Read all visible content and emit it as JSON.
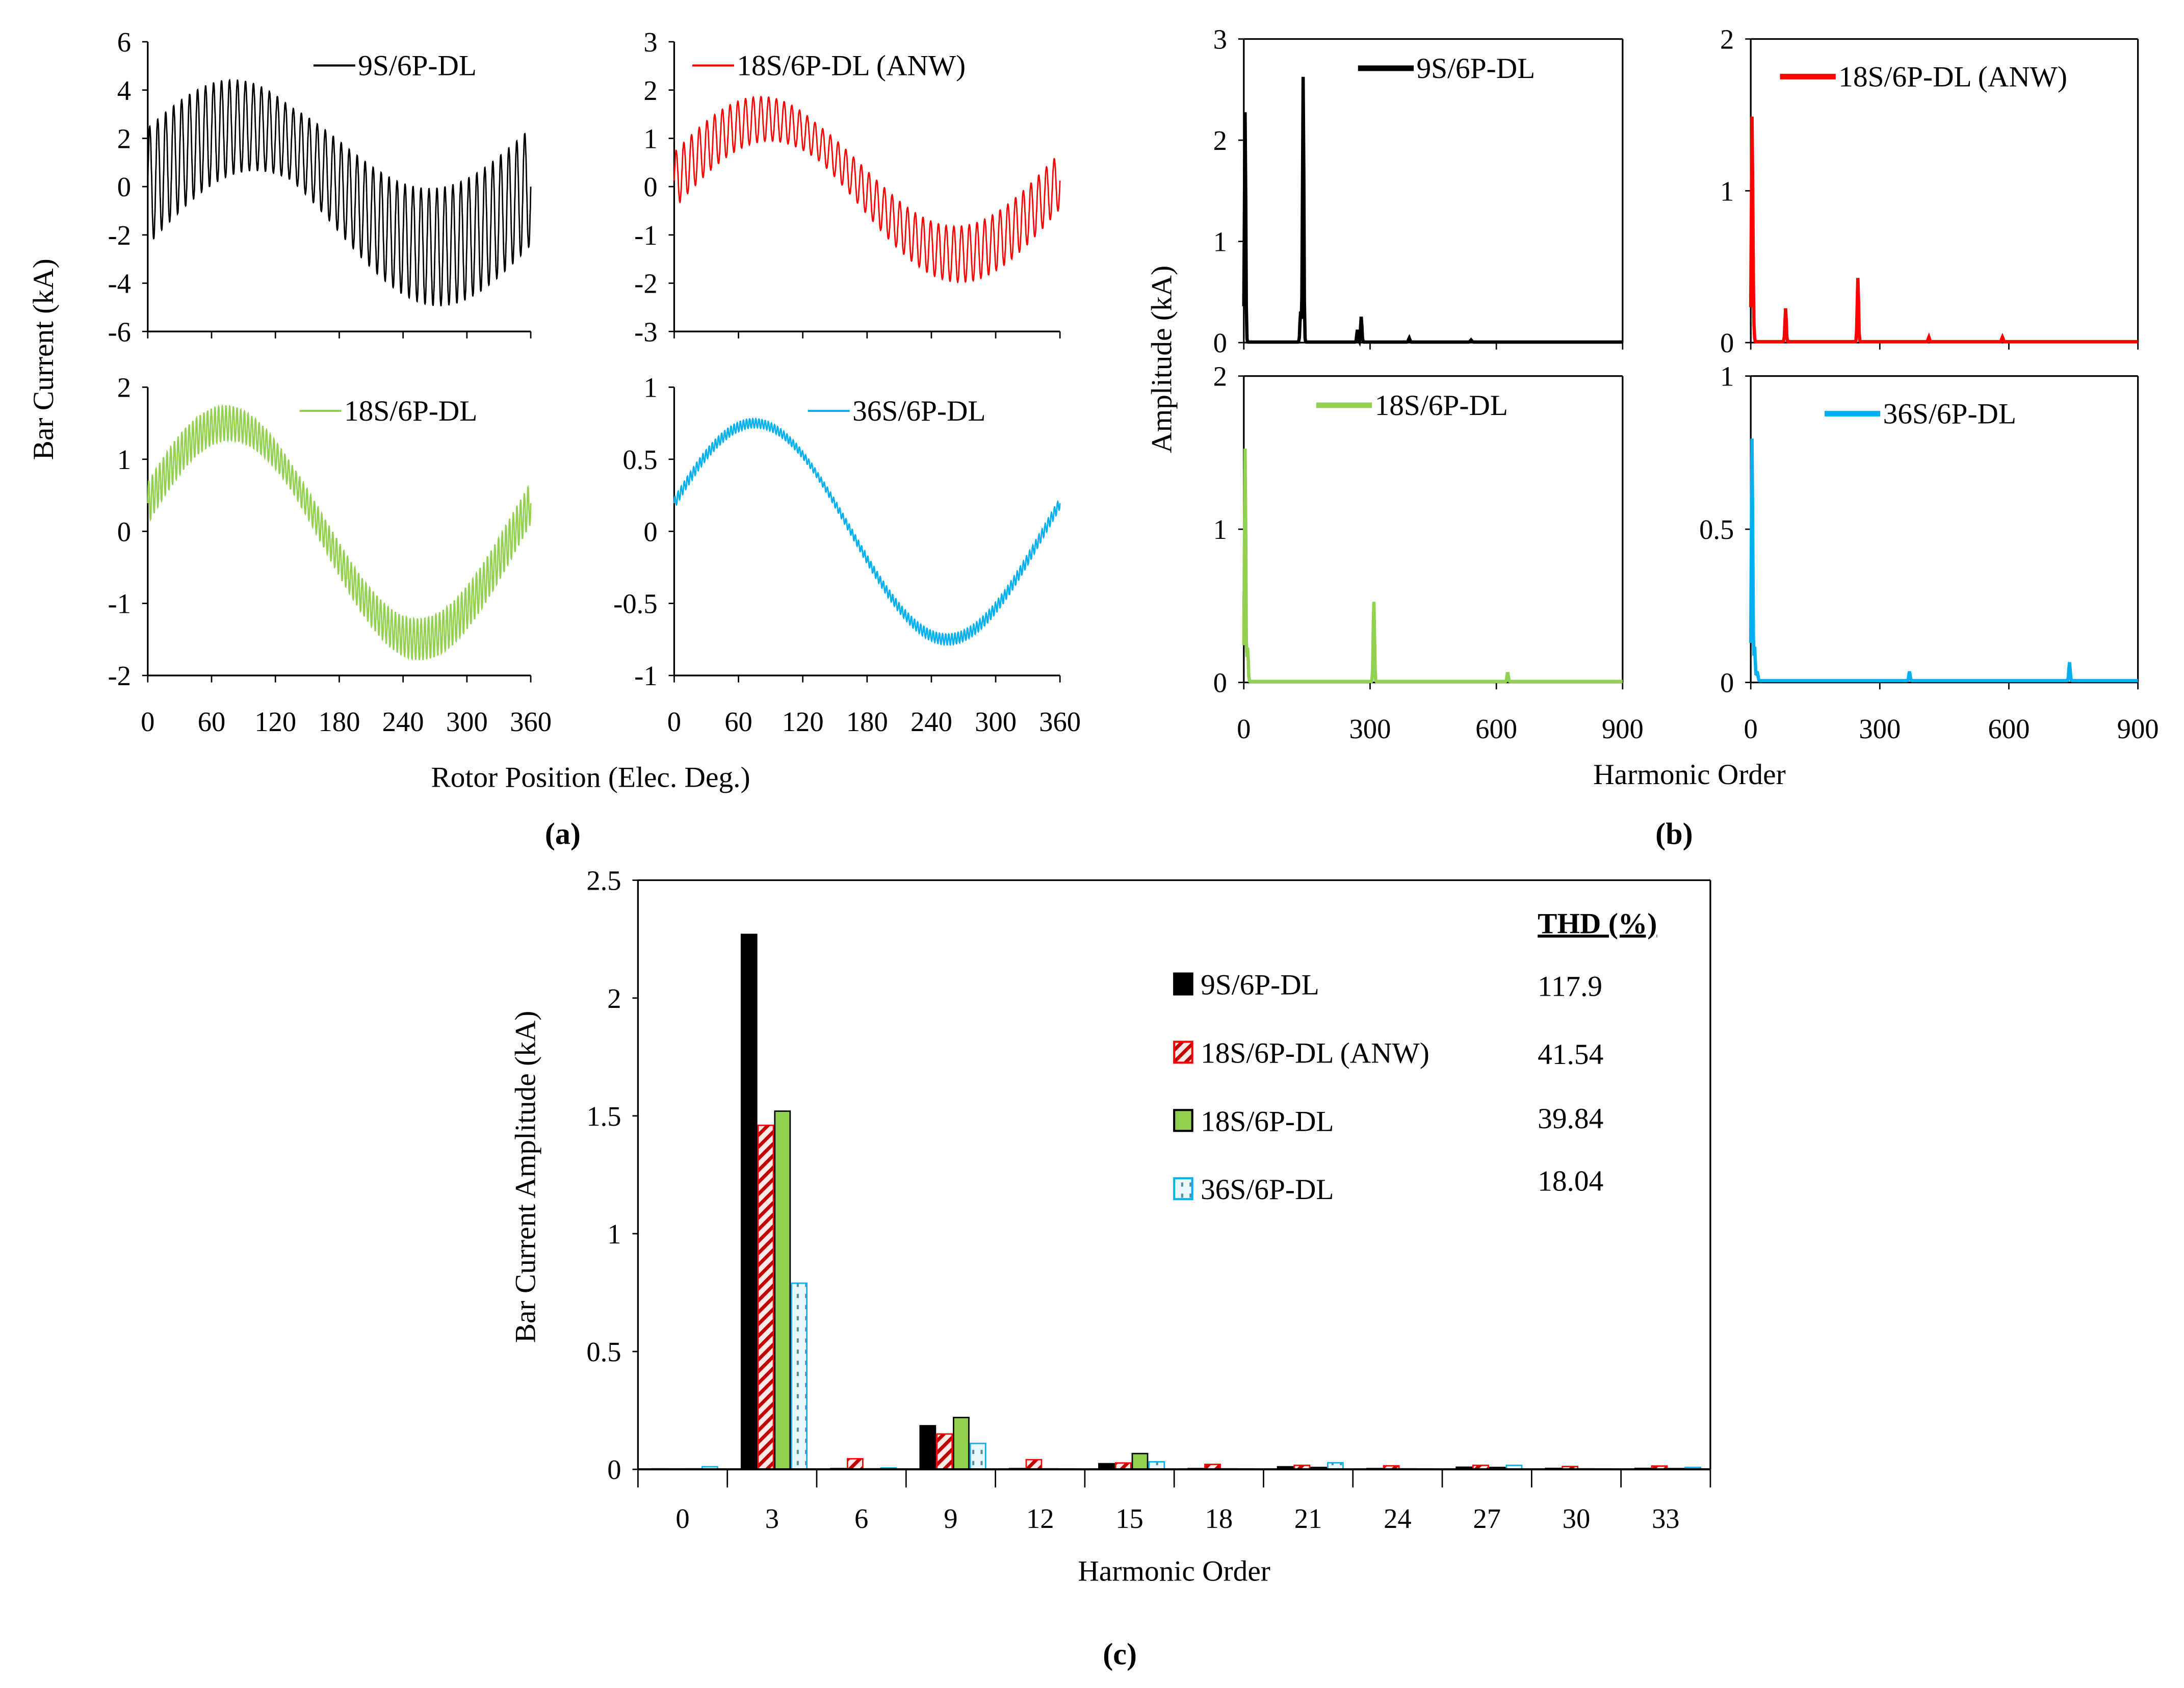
{
  "colors": {
    "s9": "#000000",
    "anw": "#ff0000",
    "s18": "#92d050",
    "s36": "#00b0f0"
  },
  "captions": {
    "a": "(a)",
    "b": "(b)",
    "c": "(c)"
  },
  "chart_data": [
    {
      "type": "line",
      "panel": "a",
      "title": "",
      "xlabel": "Rotor Position (Elec. Deg.)",
      "ylabel": "Bar Current (kA)",
      "xlim": [
        0,
        360
      ],
      "xticks": [
        "0",
        "60",
        "120",
        "180",
        "240",
        "300",
        "360"
      ],
      "subplots": [
        {
          "legend": "9S/6P-DL",
          "color": "#000000",
          "ylim": [
            -6,
            6
          ],
          "yticks": [
            "6",
            "4",
            "2",
            "0",
            "-2",
            "-4",
            "-6"
          ],
          "fundamental_amp": 2.5,
          "fundamental_phase_deg": 20,
          "ripple_amp": 2.5,
          "ripple_cycles": 48
        },
        {
          "legend": "18S/6P-DL (ANW)",
          "color": "#ff0000",
          "ylim": [
            -3,
            3
          ],
          "yticks": [
            "3",
            "2",
            "1",
            "0",
            "-1",
            "-2",
            "-3"
          ],
          "fundamental_amp": 1.4,
          "fundamental_phase_deg": 15,
          "ripple_amp": 0.6,
          "ripple_cycles": 50
        },
        {
          "legend": "18S/6P-DL",
          "color": "#92d050",
          "ylim": [
            -2,
            2
          ],
          "yticks": [
            "2",
            "1",
            "0",
            "-1",
            "-2"
          ],
          "fundamental_amp": 1.5,
          "fundamental_phase_deg": 5,
          "ripple_amp": 0.3,
          "ripple_cycles": 104
        },
        {
          "legend": "36S/6P-DL",
          "color": "#00b0f0",
          "ylim": [
            -1,
            1
          ],
          "yticks": [
            "1",
            "0.5",
            "0",
            "-0.5",
            "-1"
          ],
          "fundamental_amp": 0.75,
          "fundamental_phase_deg": 5,
          "ripple_amp": 0.04,
          "ripple_cycles": 124
        }
      ]
    },
    {
      "type": "line",
      "panel": "b",
      "xlabel": "Harmonic Order",
      "ylabel": "Amplitude (kA)",
      "xlim": [
        0,
        900
      ],
      "xticks": [
        "0",
        "300",
        "600",
        "900"
      ],
      "subplots": [
        {
          "legend": "9S/6P-DL",
          "color": "#000000",
          "ylim": [
            0,
            3
          ],
          "yticks": [
            "3",
            "2",
            "1",
            "0"
          ],
          "peaks": [
            [
              3,
              2.27
            ],
            [
              141,
              2.62
            ],
            [
              135,
              0.3
            ],
            [
              279,
              0.25
            ],
            [
              270,
              0.12
            ],
            [
              393,
              0.04
            ],
            [
              540,
              0.02
            ]
          ]
        },
        {
          "legend": "18S/6P-DL (ANW)",
          "color": "#ff0000",
          "ylim": [
            0,
            2
          ],
          "yticks": [
            "2",
            "1",
            "0"
          ],
          "peaks": [
            [
              3,
              1.46
            ],
            [
              6,
              0.15
            ],
            [
              81,
              0.22
            ],
            [
              249,
              0.42
            ],
            [
              414,
              0.03
            ],
            [
              585,
              0.03
            ]
          ]
        },
        {
          "legend": "18S/6P-DL",
          "color": "#92d050",
          "ylim": [
            0,
            2
          ],
          "yticks": [
            "2",
            "1",
            "0"
          ],
          "peaks": [
            [
              3,
              1.52
            ],
            [
              9,
              0.22
            ],
            [
              309,
              0.52
            ],
            [
              627,
              0.06
            ]
          ]
        },
        {
          "legend": "36S/6P-DL",
          "color": "#00b0f0",
          "ylim": [
            0,
            1
          ],
          "yticks": [
            "1",
            "0.5",
            "0"
          ],
          "peaks": [
            [
              3,
              0.79
            ],
            [
              9,
              0.11
            ],
            [
              15,
              0.03
            ],
            [
              369,
              0.03
            ],
            [
              741,
              0.06
            ]
          ]
        }
      ]
    },
    {
      "type": "bar",
      "panel": "c",
      "xlabel": "Harmonic Order",
      "ylabel": "Bar Current Amplitude (kA)",
      "ylim": [
        0,
        2.5
      ],
      "yticks": [
        "2.5",
        "2",
        "1.5",
        "1",
        "0.5",
        "0"
      ],
      "categories": [
        "0",
        "3",
        "6",
        "9",
        "12",
        "15",
        "18",
        "21",
        "24",
        "27",
        "30",
        "33"
      ],
      "legend_header": "THD (%)",
      "series": [
        {
          "name": "9S/6P-DL",
          "thd": "117.9",
          "color": "#000000",
          "pattern": "solid",
          "values": [
            0.002,
            2.27,
            0.003,
            0.185,
            0.003,
            0.024,
            0.003,
            0.011,
            0.003,
            0.009,
            0.004,
            0.004
          ]
        },
        {
          "name": "18S/6P-DL (ANW)",
          "thd": "41.54",
          "color": "#ff0000",
          "pattern": "diagonal",
          "values": [
            0.002,
            1.46,
            0.045,
            0.15,
            0.041,
            0.027,
            0.021,
            0.017,
            0.015,
            0.017,
            0.012,
            0.014
          ]
        },
        {
          "name": "18S/6P-DL",
          "thd": "39.84",
          "color": "#92d050",
          "pattern": "solid",
          "values": [
            0.002,
            1.52,
            0.002,
            0.22,
            0.002,
            0.067,
            0.002,
            0.008,
            0.002,
            0.008,
            0.002,
            0.003
          ]
        },
        {
          "name": "36S/6P-DL",
          "thd": "18.04",
          "color": "#00b0f0",
          "pattern": "dotted",
          "values": [
            0.011,
            0.79,
            0.006,
            0.11,
            0.002,
            0.032,
            0.002,
            0.028,
            0.002,
            0.017,
            0.002,
            0.008
          ]
        }
      ]
    }
  ]
}
